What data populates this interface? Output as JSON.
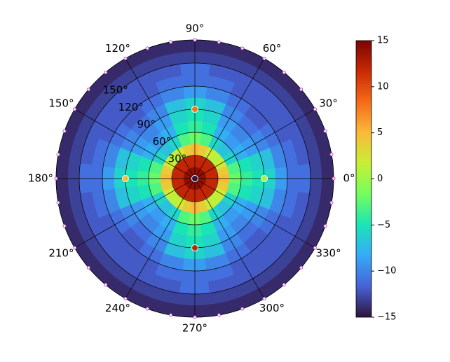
{
  "chart_data": {
    "type": "polar_heatmap",
    "rlim": [
      0,
      180
    ],
    "rticks": [
      {
        "value": 30,
        "label": "30°"
      },
      {
        "value": 60,
        "label": "60°"
      },
      {
        "value": 90,
        "label": "90°"
      },
      {
        "value": 120,
        "label": "120°"
      },
      {
        "value": 150,
        "label": "150°"
      }
    ],
    "thetaticks": [
      {
        "value": 0,
        "label": "0°"
      },
      {
        "value": 30,
        "label": "30°"
      },
      {
        "value": 60,
        "label": "60°"
      },
      {
        "value": 90,
        "label": "90°"
      },
      {
        "value": 120,
        "label": "120°"
      },
      {
        "value": 150,
        "label": "150°"
      },
      {
        "value": 180,
        "label": "180°"
      },
      {
        "value": 210,
        "label": "210°"
      },
      {
        "value": 240,
        "label": "240°"
      },
      {
        "value": 270,
        "label": "270°"
      },
      {
        "value": 300,
        "label": "300°"
      },
      {
        "value": 330,
        "label": "330°"
      }
    ],
    "grid": true,
    "clim": [
      -15,
      15
    ],
    "cticks": [
      {
        "value": -15,
        "label": "−15"
      },
      {
        "value": -10,
        "label": "−10"
      },
      {
        "value": -5,
        "label": "−5"
      },
      0,
      5,
      10,
      15
    ],
    "colormap": [
      "#30123b",
      "#4662d7",
      "#36aaf9",
      "#1ae4b6",
      "#72fe5e",
      "#c8ef34",
      "#faba39",
      "#f66b19",
      "#ca2a04",
      "#7a0403"
    ],
    "heatmap": {
      "r_edges": [
        0,
        15,
        30,
        45,
        60,
        75,
        90,
        105,
        120,
        135,
        150,
        165,
        180
      ],
      "theta_edges": [
        -7.5,
        7.5,
        22.5,
        37.5,
        52.5,
        67.5,
        82.5,
        97.5,
        112.5,
        127.5,
        142.5,
        157.5,
        172.5,
        187.5,
        202.5,
        217.5,
        232.5,
        247.5,
        262.5,
        277.5,
        292.5,
        307.5,
        322.5,
        337.5,
        352.5
      ],
      "values": [
        [
          14,
          14,
          14,
          14,
          14,
          14,
          14,
          14,
          14,
          14,
          14,
          14,
          14,
          14,
          14,
          14,
          14,
          14,
          14,
          14,
          14,
          14,
          14,
          14
        ],
        [
          12,
          12,
          12,
          12,
          12,
          12,
          12,
          12,
          12,
          12,
          12,
          12,
          12,
          12,
          12,
          12,
          12,
          12,
          12,
          12,
          12,
          12,
          12,
          12
        ],
        [
          5,
          4,
          2,
          1,
          2,
          4,
          5,
          4,
          2,
          1,
          2,
          4,
          5,
          4,
          2,
          1,
          2,
          4,
          5,
          4,
          2,
          1,
          2,
          4
        ],
        [
          -2,
          -3,
          -6,
          -7,
          -6,
          -3,
          -2,
          -3,
          -6,
          -7,
          -6,
          -3,
          -2,
          -3,
          -6,
          -7,
          -6,
          -3,
          -2,
          -3,
          -6,
          -7,
          -6,
          -3
        ],
        [
          -4,
          -5,
          -8,
          -9,
          -8,
          -5,
          -4,
          -5,
          -8,
          -9,
          -8,
          -5,
          -4,
          -5,
          -8,
          -9,
          -8,
          -5,
          -4,
          -5,
          -8,
          -9,
          -8,
          -5
        ],
        [
          -5,
          -6,
          -9,
          -10,
          -9,
          -6,
          -5,
          -6,
          -9,
          -10,
          -9,
          -6,
          -5,
          -6,
          -9,
          -10,
          -9,
          -6,
          -5,
          -6,
          -9,
          -10,
          -9,
          -6
        ],
        [
          -6,
          -7,
          -10,
          -11,
          -10,
          -7,
          -6,
          -7,
          -10,
          -11,
          -10,
          -7,
          -6,
          -7,
          -10,
          -11,
          -10,
          -7,
          -6,
          -7,
          -10,
          -11,
          -10,
          -7
        ],
        [
          -9,
          -10,
          -11,
          -12,
          -11,
          -10,
          -9,
          -10,
          -11,
          -12,
          -11,
          -10,
          -9,
          -10,
          -11,
          -12,
          -11,
          -10,
          -9,
          -10,
          -11,
          -12,
          -11,
          -10
        ],
        [
          -11,
          -11,
          -12,
          -12,
          -12,
          -11,
          -11,
          -11,
          -12,
          -12,
          -12,
          -11,
          -11,
          -11,
          -12,
          -12,
          -12,
          -11,
          -11,
          -11,
          -12,
          -12,
          -12,
          -11
        ],
        [
          -11,
          -12,
          -12,
          -12,
          -12,
          -12,
          -11,
          -12,
          -12,
          -12,
          -12,
          -12,
          -11,
          -12,
          -12,
          -12,
          -12,
          -12,
          -11,
          -12,
          -12,
          -12,
          -12,
          -12
        ],
        [
          -13,
          -13,
          -13,
          -13,
          -13,
          -13,
          -13,
          -13,
          -13,
          -13,
          -13,
          -13,
          -13,
          -13,
          -13,
          -13,
          -13,
          -13,
          -13,
          -13,
          -13,
          -13,
          -13,
          -13
        ],
        [
          -14,
          -14,
          -14,
          -14,
          -14,
          -14,
          -14,
          -14,
          -14,
          -14,
          -14,
          -14,
          -14,
          -14,
          -14,
          -14,
          -14,
          -14,
          -14,
          -14,
          -14,
          -14,
          -14,
          -14
        ]
      ]
    },
    "points": {
      "theta": [
        0,
        0,
        90,
        180,
        270
      ],
      "r": [
        0,
        90,
        90,
        90,
        90
      ],
      "values": [
        -15,
        0,
        8,
        5,
        12
      ]
    },
    "boundary_points": {
      "theta": [
        0,
        10,
        20,
        30,
        40,
        50,
        60,
        70,
        80,
        90,
        100,
        110,
        120,
        130,
        140,
        150,
        160,
        170,
        180,
        190,
        200,
        210,
        220,
        230,
        240,
        250,
        260,
        270,
        280,
        290,
        300,
        310,
        320,
        330,
        340,
        350
      ],
      "r": [
        180,
        180,
        180,
        180,
        180,
        180,
        180,
        180,
        180,
        180,
        180,
        180,
        180,
        180,
        180,
        180,
        180,
        180,
        180,
        180,
        180,
        180,
        180,
        180,
        180,
        180,
        180,
        180,
        180,
        180,
        180,
        180,
        180,
        180,
        180,
        180
      ],
      "color": "#c050c0"
    }
  }
}
